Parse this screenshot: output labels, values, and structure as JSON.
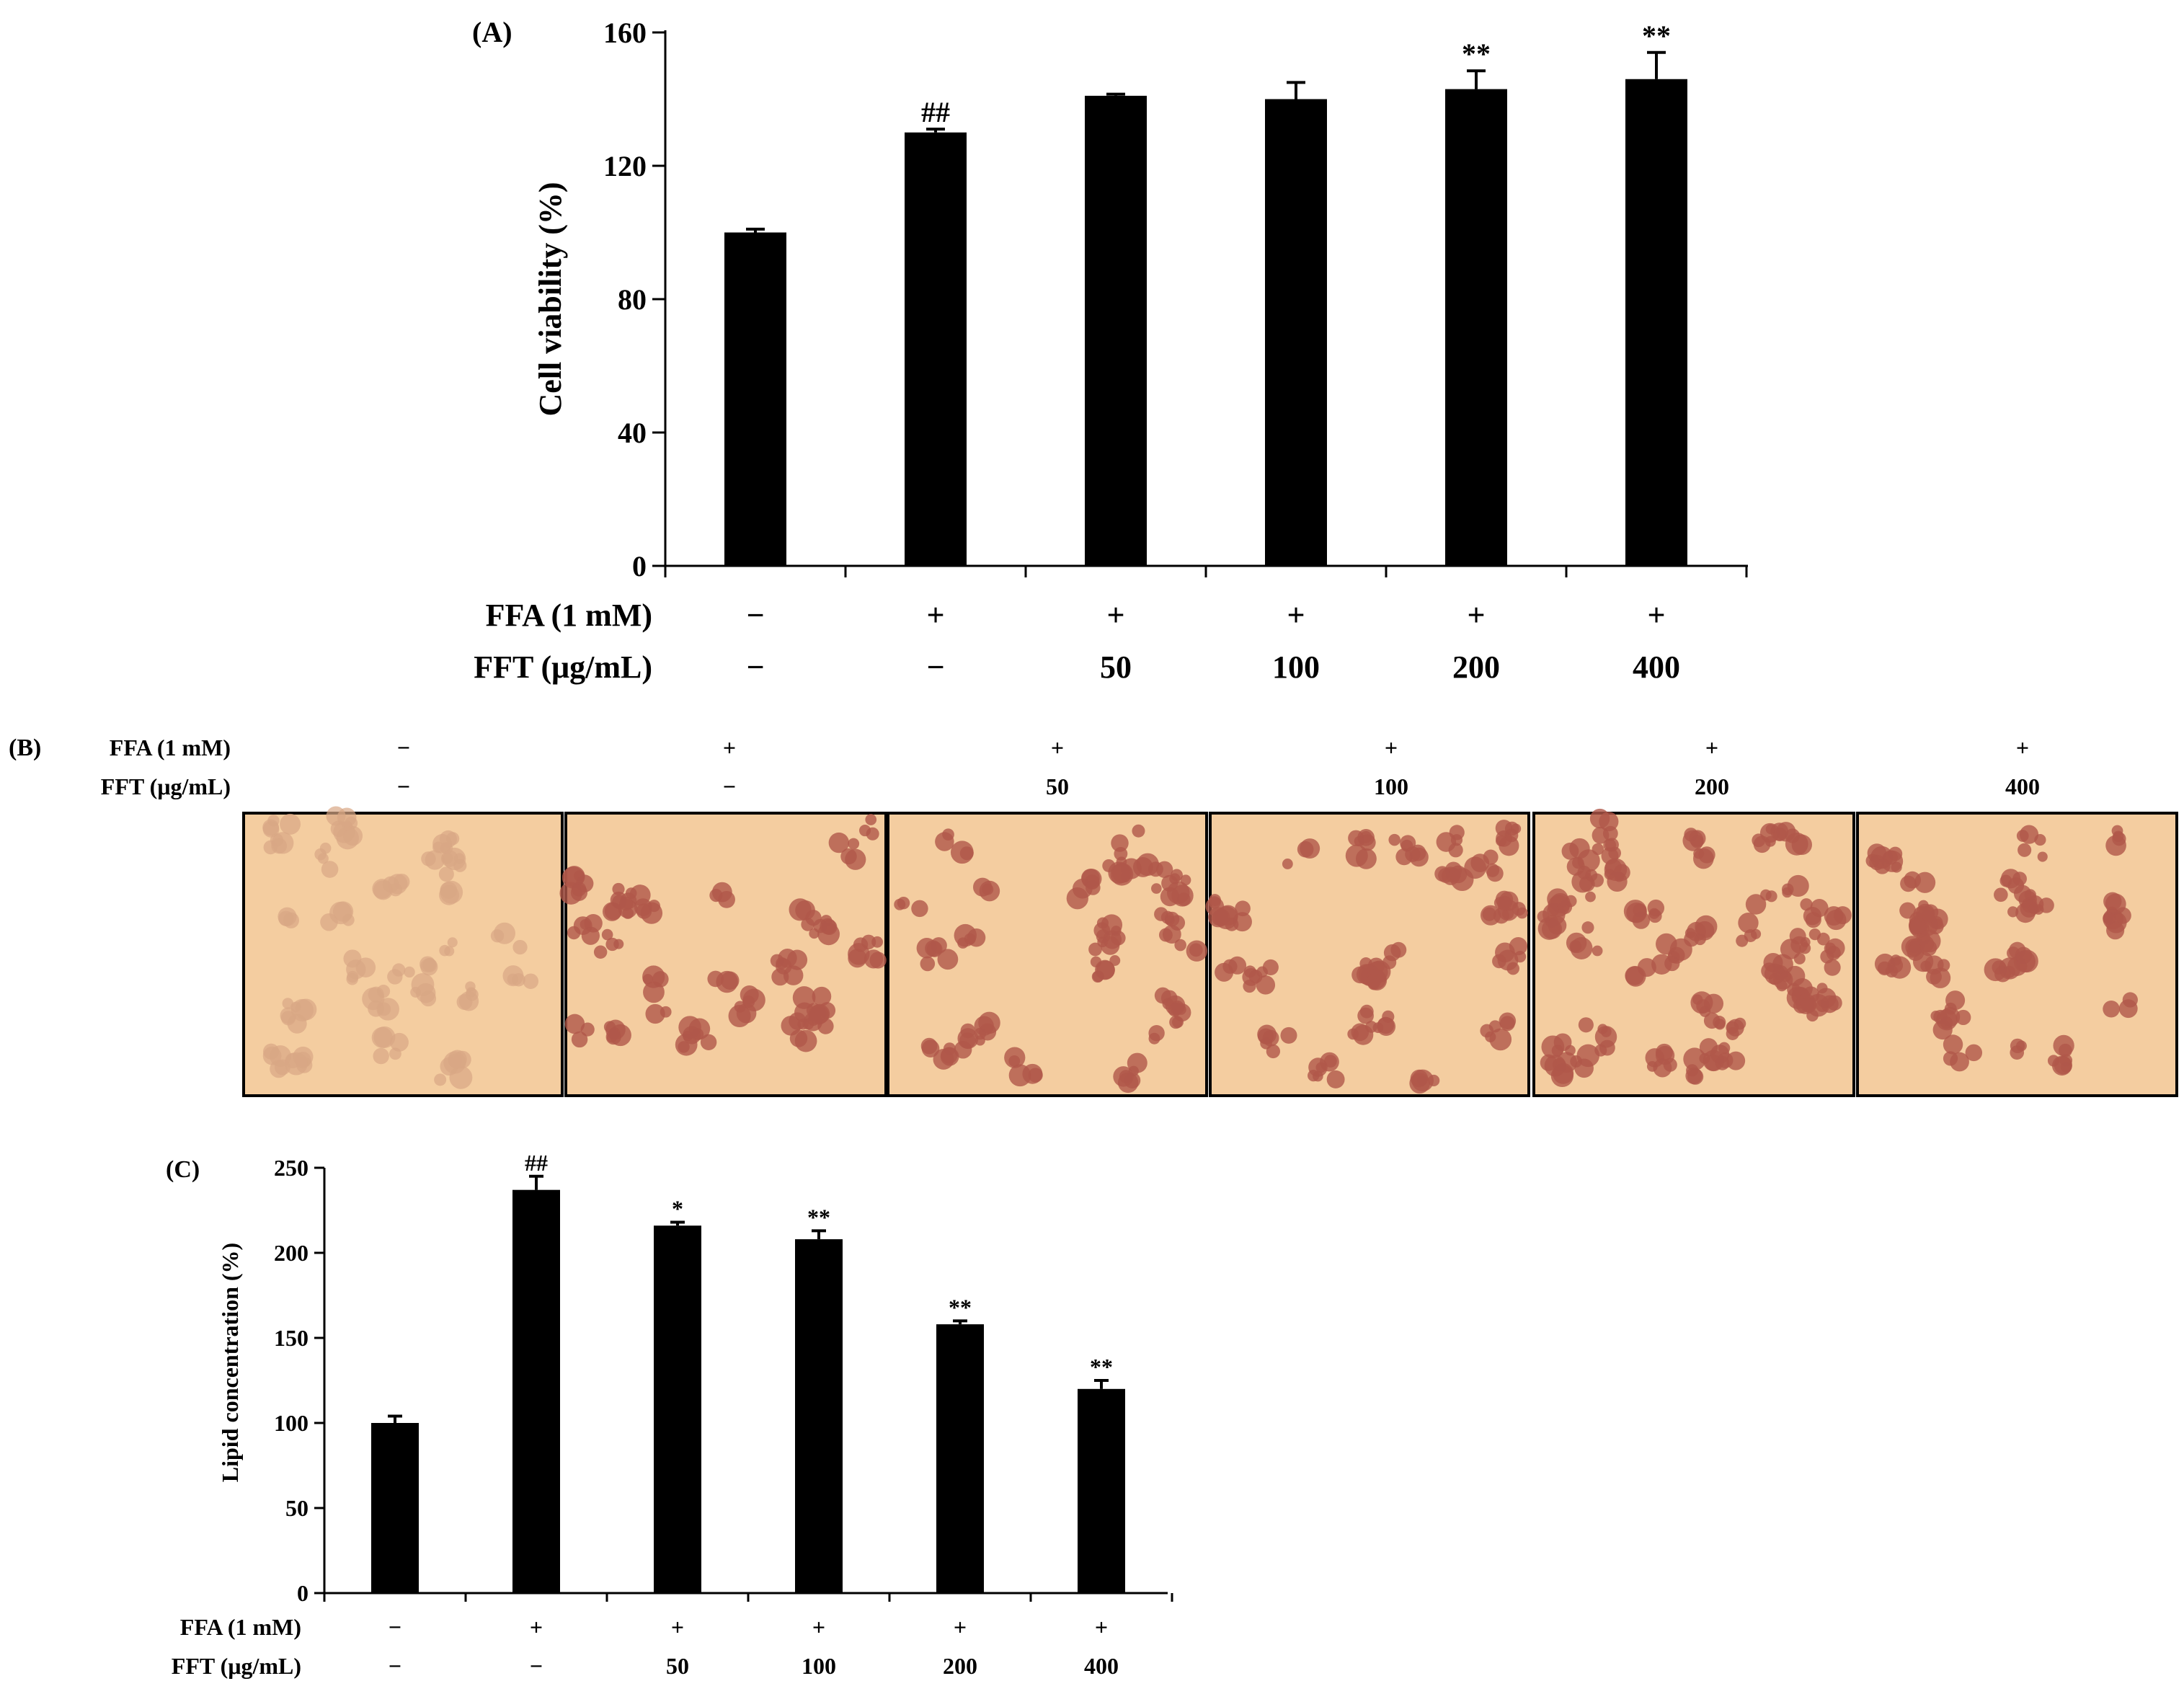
{
  "panels": [
    {
      "id": "A",
      "label": "(A)",
      "ylabel": "Cell viability (%)",
      "ylim": [
        0,
        160
      ],
      "yticks": [
        0,
        40,
        80,
        120,
        160
      ]
    },
    {
      "id": "B",
      "label": "(B)"
    },
    {
      "id": "C",
      "label": "(C)",
      "ylabel": "Lipid concentration (%)",
      "ylim": [
        0,
        250
      ],
      "yticks": [
        0,
        50,
        100,
        150,
        200,
        250
      ]
    }
  ],
  "treatments": {
    "ffa_label": "FFA (1 mM)",
    "fft_label": "FFT (μg/mL)",
    "ffa": [
      "−",
      "+",
      "+",
      "+",
      "+",
      "+"
    ],
    "fft": [
      "−",
      "−",
      "50",
      "100",
      "200",
      "400"
    ]
  },
  "chart_data": [
    {
      "type": "bar",
      "panel": "A",
      "categories": [
        "1",
        "2",
        "3",
        "4",
        "5",
        "6"
      ],
      "values": [
        100,
        130,
        141,
        140,
        143,
        146
      ],
      "errors": [
        1,
        1,
        0.5,
        5,
        5.5,
        8
      ],
      "annotations": [
        "",
        "##",
        "",
        "",
        "**",
        "**"
      ],
      "ylabel": "Cell viability (%)",
      "ylim": [
        0,
        160
      ],
      "bar_color": "#000000"
    },
    {
      "type": "bar",
      "panel": "C",
      "categories": [
        "1",
        "2",
        "3",
        "4",
        "5",
        "6"
      ],
      "values": [
        100,
        237,
        216,
        208,
        158,
        120
      ],
      "errors": [
        4,
        8,
        2,
        5,
        2,
        5
      ],
      "annotations": [
        "",
        "##",
        "*",
        "**",
        "**",
        "**"
      ],
      "ylabel": "Lipid concentration (%)",
      "ylim": [
        0,
        250
      ],
      "bar_color": "#000000"
    }
  ],
  "micrographs": {
    "background": "#f4cda0",
    "cell_color": "#b0584a",
    "count": 6
  }
}
